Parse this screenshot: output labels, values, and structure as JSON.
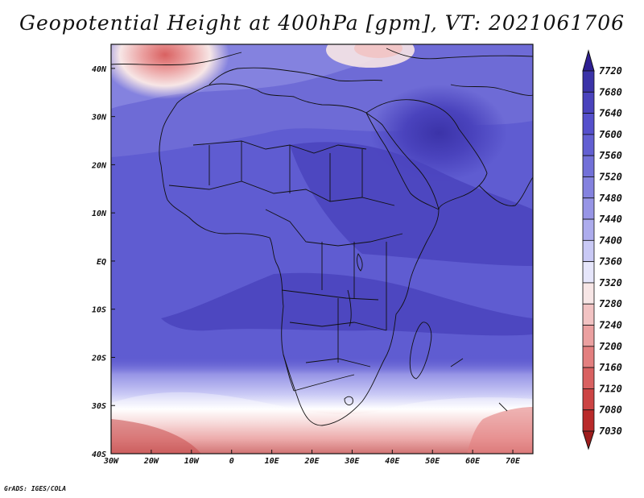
{
  "title": "Geopotential Height at 400hPa [gpm], VT: 2021061706",
  "map": {
    "lon_labels": [
      "30W",
      "20W",
      "10W",
      "0",
      "10E",
      "20E",
      "30E",
      "40E",
      "50E",
      "60E",
      "70E"
    ],
    "lat_labels": [
      "40N",
      "30N",
      "20N",
      "10N",
      "EQ",
      "10S",
      "20S",
      "30S",
      "40S"
    ],
    "extent": {
      "lon_min": -30,
      "lon_max": 75,
      "lat_min": -40,
      "lat_max": 45
    }
  },
  "colorbar": {
    "levels": [
      "7720",
      "7680",
      "7640",
      "7600",
      "7560",
      "7520",
      "7480",
      "7440",
      "7400",
      "7360",
      "7320",
      "7280",
      "7240",
      "7200",
      "7160",
      "7120",
      "7080",
      "7030"
    ],
    "colors": [
      "#2e1f93",
      "#3b33a8",
      "#4a43bd",
      "#5550cc",
      "#625fd2",
      "#7270d8",
      "#8482df",
      "#9795e6",
      "#adaced",
      "#c9c9f5",
      "#e6e6fb",
      "#f7e6e6",
      "#f2c3c3",
      "#eba0a0",
      "#e37f7f",
      "#d96161",
      "#cc4444",
      "#b92a2a",
      "#9e1c1c"
    ]
  },
  "credit": "GrADS: IGES/COLA"
}
